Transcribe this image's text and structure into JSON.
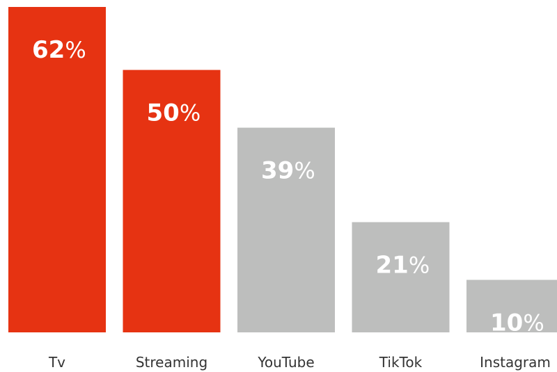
{
  "chart_data": {
    "type": "bar",
    "categories": [
      "Tv",
      "Streaming",
      "YouTube",
      "TikTok",
      "Instagram"
    ],
    "values": [
      62,
      50,
      39,
      21,
      10
    ],
    "value_unit": "%",
    "ylim": [
      0,
      62
    ],
    "grid": false,
    "highlight_color": "#E63312",
    "base_color": "#BDBEBD",
    "highlighted": [
      "Tv",
      "Streaming"
    ]
  }
}
